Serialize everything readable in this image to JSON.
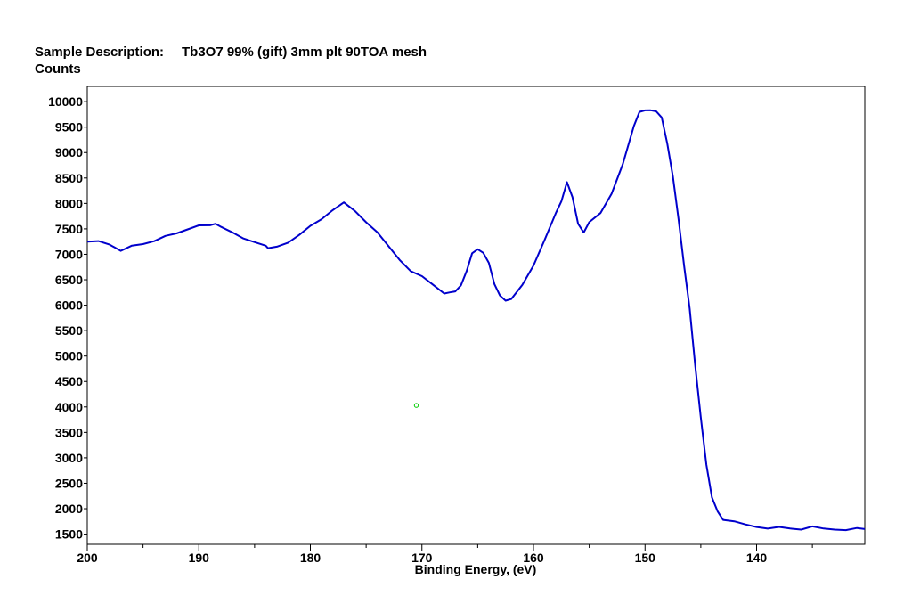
{
  "header": {
    "description_label": "Sample Description:",
    "description_value": "Tb3O7 99% (gift) 3mm plt 90TOA mesh"
  },
  "chart_data": {
    "type": "line",
    "title": "",
    "xlabel": "Binding Energy, (eV)",
    "ylabel": "Counts",
    "xlim": [
      200,
      130.3
    ],
    "ylim": [
      1300,
      10300
    ],
    "x_reversed": true,
    "x_ticks": [
      200,
      190,
      180,
      170,
      160,
      150,
      140
    ],
    "x_minor_step": 5,
    "y_ticks": [
      1500,
      2000,
      2500,
      3000,
      3500,
      4000,
      4500,
      5000,
      5500,
      6000,
      6500,
      7000,
      7500,
      8000,
      8500,
      9000,
      9500,
      10000
    ],
    "grid": false,
    "line_color": "#0000cc",
    "marker": {
      "x": 170.5,
      "y": 4030,
      "color": "#00cc00"
    },
    "series": [
      {
        "x": [
          200,
          199,
          198,
          197,
          196,
          195,
          194,
          193,
          192,
          191,
          190,
          189,
          188.5,
          188,
          187,
          186,
          185,
          184,
          183.8,
          183,
          182,
          181,
          180,
          179,
          178,
          177,
          176,
          175,
          174,
          173,
          172,
          171,
          170,
          169,
          168,
          167.5,
          167,
          166.5,
          166,
          165.5,
          165,
          164.5,
          164,
          163.5,
          163,
          162.5,
          162,
          161,
          160,
          159,
          158,
          157.5,
          157,
          156.5,
          156,
          155.5,
          155,
          154,
          153,
          152,
          151,
          150.5,
          150,
          149.5,
          149,
          148.5,
          148,
          147.5,
          147,
          146.5,
          146,
          145.5,
          145,
          144.5,
          144,
          143.5,
          143,
          142,
          141,
          140,
          139,
          138,
          137,
          136,
          135,
          134,
          133,
          132,
          131,
          130.3
        ],
        "y": [
          7250,
          7250,
          7200,
          7100,
          7150,
          7200,
          7280,
          7330,
          7400,
          7500,
          7600,
          7550,
          7600,
          7560,
          7400,
          7300,
          7250,
          7200,
          7100,
          7150,
          7250,
          7350,
          7550,
          7700,
          7900,
          8000,
          7850,
          7650,
          7400,
          7150,
          6900,
          6700,
          6550,
          6400,
          6250,
          6220,
          6260,
          6400,
          6700,
          7000,
          7100,
          7050,
          6800,
          6400,
          6200,
          6120,
          6100,
          6400,
          6800,
          7250,
          7800,
          8050,
          8450,
          8100,
          7600,
          7450,
          7600,
          7800,
          8200,
          8800,
          9500,
          9800,
          9850,
          9800,
          9800,
          9700,
          9200,
          8500,
          7700,
          6800,
          5900,
          4800,
          3800,
          2900,
          2200,
          1950,
          1800,
          1720,
          1680,
          1650,
          1640,
          1620,
          1610,
          1610,
          1620,
          1600,
          1600,
          1610,
          1600,
          1600
        ]
      }
    ]
  }
}
